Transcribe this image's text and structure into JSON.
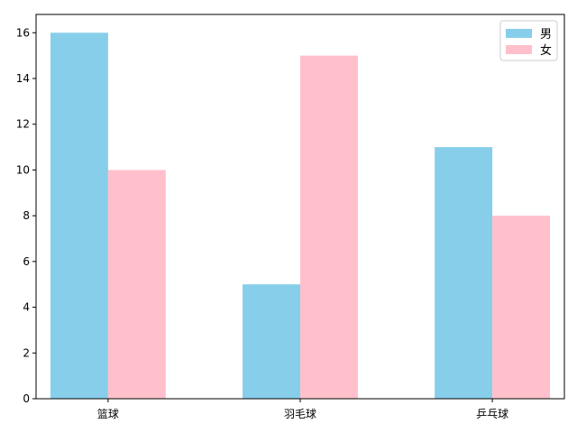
{
  "chart_data": {
    "type": "bar",
    "categories": [
      "篮球",
      "羽毛球",
      "乒乓球"
    ],
    "series": [
      {
        "name": "男",
        "values": [
          16,
          5,
          11
        ],
        "color": "#87ceeb"
      },
      {
        "name": "女",
        "values": [
          10,
          15,
          8
        ],
        "color": "#ffc0cb"
      }
    ],
    "title": "",
    "xlabel": "",
    "ylabel": "",
    "ylim": [
      0,
      16.8
    ],
    "yticks": [
      0,
      2,
      4,
      6,
      8,
      10,
      12,
      14,
      16
    ],
    "grid": false,
    "legend": "top-right"
  }
}
